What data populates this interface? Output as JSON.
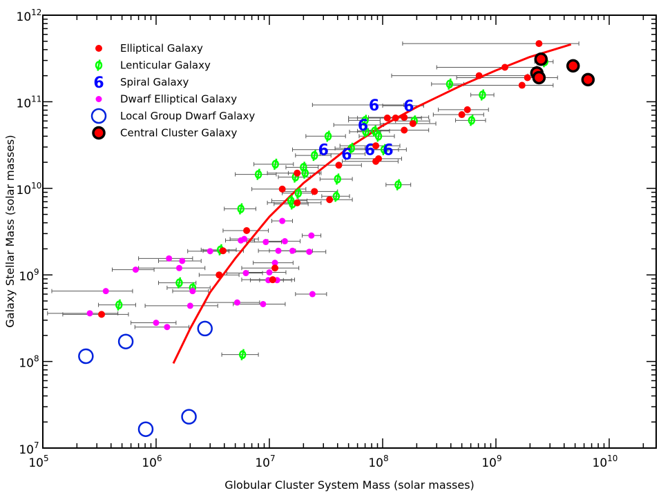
{
  "chart_data": {
    "type": "scatter",
    "xlabel": "Globular Cluster System Mass (solar masses)",
    "ylabel": "Galaxy Stellar Mass (solar masses)",
    "xscale": "log",
    "yscale": "log",
    "xlim": [
      100000,
      30000000000
    ],
    "ylim": [
      10000000,
      1000000000000
    ],
    "x_ticks": [
      {
        "base": "10",
        "exp": "5"
      },
      {
        "base": "10",
        "exp": "6"
      },
      {
        "base": "10",
        "exp": "7"
      },
      {
        "base": "10",
        "exp": "8"
      },
      {
        "base": "10",
        "exp": "9"
      },
      {
        "base": "10",
        "exp": "10"
      }
    ],
    "y_ticks": [
      {
        "base": "10",
        "exp": "7"
      },
      {
        "base": "10",
        "exp": "8"
      },
      {
        "base": "10",
        "exp": "9"
      },
      {
        "base": "10",
        "exp": "10"
      },
      {
        "base": "10",
        "exp": "11"
      },
      {
        "base": "10",
        "exp": "12"
      }
    ],
    "legend_position": "top-left",
    "colors": {
      "elliptical": "#ff0000",
      "lenticular": "#00ff00",
      "spiral": "#0000ff",
      "dwarf": "#ff00ff",
      "local": "#0022dd",
      "central_outline": "#000000",
      "fit": "#ff0000",
      "errorbar": "#555555"
    },
    "series": [
      {
        "name": "Elliptical Galaxy",
        "marker": "dot",
        "points": [
          [
            2400000000.0,
            470000000000.0
          ],
          [
            710000000.0,
            200000000000.0
          ],
          [
            1200000000.0,
            250000000000.0
          ],
          [
            1900000000.0,
            190000000000.0
          ],
          [
            1700000000.0,
            155000000000.0
          ],
          [
            110000000.0,
            65000000000.0
          ],
          [
            130000000.0,
            65000000000.0
          ],
          [
            155000000.0,
            66000000000.0
          ],
          [
            185000000.0,
            56000000000.0
          ],
          [
            560000000.0,
            81000000000.0
          ],
          [
            500000000.0,
            71000000000.0
          ],
          [
            155000000.0,
            47000000000.0
          ],
          [
            87000000.0,
            31000000000.0
          ],
          [
            92000000.0,
            22000000000.0
          ],
          [
            87000000.0,
            20500000000.0
          ],
          [
            41000000.0,
            18500000000.0
          ],
          [
            34000000.0,
            7400000000.0
          ],
          [
            25000000.0,
            9200000000.0
          ],
          [
            17600000.0,
            6800000000.0
          ],
          [
            17600000.0,
            15000000000.0
          ],
          [
            13000000.0,
            9800000000.0
          ],
          [
            6300000.0,
            3250000000.0
          ],
          [
            3900000.0,
            1900000000.0
          ],
          [
            3600000.0,
            1000000000.0
          ],
          [
            11200000.0,
            1200000000.0
          ],
          [
            10700000.0,
            880000000.0
          ],
          [
            330000.0,
            350000000.0
          ]
        ],
        "xerr_lo": [
          2250000000.0,
          590000000.0,
          900000000.0,
          1450000000.0,
          1300000000.0,
          60000000.0,
          70000000.0,
          80000000.0,
          90000000.0,
          250000000.0,
          220000000.0,
          80000000.0,
          45000000.0,
          45000000.0,
          43000000.0,
          20000000.0,
          16000000.0,
          12000000.0,
          8000000.0,
          8000000.0,
          6000000.0,
          2400000.0,
          1300000.0,
          1200000.0,
          5500000.0,
          5000000.0,
          180000.0
        ],
        "xerr_hi": [
          3000000000.0,
          1200000000.0,
          1100000000.0,
          1600000000.0,
          1500000000.0,
          80000000.0,
          90000000.0,
          100000000.0,
          110000000.0,
          300000000.0,
          280000000.0,
          100000000.0,
          55000000.0,
          55000000.0,
          50000000.0,
          24000000.0,
          20000000.0,
          15000000.0,
          11000000.0,
          11000000.0,
          8000000.0,
          3500000.0,
          2000000.0,
          1800000.0,
          7000000.0,
          6000000.0,
          240000.0
        ]
      },
      {
        "name": "Lenticular Galaxy",
        "marker": "phi",
        "points": [
          [
            2700000000.0,
            290000000000.0
          ],
          [
            390000000.0,
            160000000000.0
          ],
          [
            760000000.0,
            120000000000.0
          ],
          [
            610000000.0,
            61000000000.0
          ],
          [
            190000000.0,
            60000000000.0
          ],
          [
            70000000.0,
            61000000000.0
          ],
          [
            71000000.0,
            45000000000.0
          ],
          [
            85000000.0,
            46000000000.0
          ],
          [
            92000000.0,
            40000000000.0
          ],
          [
            53000000.0,
            29000000000.0
          ],
          [
            103000000.0,
            28000000000.0
          ],
          [
            33000000.0,
            40000000000.0
          ],
          [
            25000000.0,
            24000000000.0
          ],
          [
            11300000.0,
            19000000000.0
          ],
          [
            20000000.0,
            17500000000.0
          ],
          [
            20700000.0,
            15000000000.0
          ],
          [
            17000000.0,
            13500000000.0
          ],
          [
            8000000.0,
            14500000000.0
          ],
          [
            40000000.0,
            12800000000.0
          ],
          [
            137000000.0,
            11000000000.0
          ],
          [
            15500000.0,
            7200000000.0
          ],
          [
            16000000.0,
            6600000000.0
          ],
          [
            18000000.0,
            8800000000.0
          ],
          [
            39000000.0,
            8100000000.0
          ],
          [
            5600000.0,
            5800000000.0
          ],
          [
            3700000.0,
            1950000000.0
          ],
          [
            1600000.0,
            810000000.0
          ],
          [
            2100000.0,
            710000000.0
          ],
          [
            470000.0,
            450000000.0
          ],
          [
            5800000.0,
            120000000.0
          ]
        ],
        "xerr_lo": [
          500000000.0,
          120000000.0,
          160000000.0,
          170000000.0,
          60000000.0,
          20000000.0,
          20000000.0,
          25000000.0,
          30000000.0,
          15000000.0,
          30000000.0,
          12000000.0,
          8000000.0,
          4000000.0,
          6000000.0,
          6000000.0,
          5000000.0,
          3000000.0,
          12000000.0,
          30000000.0,
          5000000.0,
          5000000.0,
          5000000.0,
          10000000.0,
          1600000.0,
          1200000.0,
          550000.0,
          850000.0,
          160000.0,
          2000000.0
        ],
        "xerr_hi": [
          500000000.0,
          130000000.0,
          200000000.0,
          200000000.0,
          70000000.0,
          25000000.0,
          25000000.0,
          30000000.0,
          35000000.0,
          17000000.0,
          35000000.0,
          14000000.0,
          10000000.0,
          5000000.0,
          7000000.0,
          7000000.0,
          6000000.0,
          3500000.0,
          14000000.0,
          40000000.0,
          6000000.0,
          6000000.0,
          6000000.0,
          12000000.0,
          2000000.0,
          1400000.0,
          650000.0,
          900000.0,
          190000.0,
          2200000.0
        ]
      },
      {
        "name": "Spiral Galaxy",
        "marker": "six",
        "points": [
          [
            84000000.0,
            92000000000.0
          ],
          [
            170000000.0,
            90000000000.0
          ],
          [
            67000000.0,
            54000000000.0
          ],
          [
            30000000.0,
            28000000000.0
          ],
          [
            48000000.0,
            25000000000.0
          ],
          [
            77000000.0,
            28000000000.0
          ],
          [
            112000000.0,
            28000000000.0
          ]
        ],
        "xerr_lo": [
          60000000.0,
          70000000.0,
          30000000.0,
          14000000.0,
          20000000.0,
          30000000.0,
          40000000.0
        ],
        "xerr_hi": [
          70000000.0,
          60000000.0,
          35000000.0,
          16000000.0,
          22000000.0,
          35000000.0,
          50000000.0
        ]
      },
      {
        "name": "Dwarf Elliptical Galaxy",
        "marker": "dot",
        "points": [
          [
            13000000.0,
            4200000000.0
          ],
          [
            23500000.0,
            2850000000.0
          ],
          [
            6000000.0,
            2600000000.0
          ],
          [
            5600000.0,
            2500000000.0
          ],
          [
            9300000.0,
            2400000000.0
          ],
          [
            13700000.0,
            2450000000.0
          ],
          [
            16000000.0,
            1900000000.0
          ],
          [
            12000000.0,
            1900000000.0
          ],
          [
            22500000.0,
            1850000000.0
          ],
          [
            3000000.0,
            1880000000.0
          ],
          [
            11200000.0,
            1380000000.0
          ],
          [
            1300000.0,
            1550000000.0
          ],
          [
            1700000.0,
            1450000000.0
          ],
          [
            1600000.0,
            1200000000.0
          ],
          [
            660000.0,
            1150000000.0
          ],
          [
            6200000.0,
            1050000000.0
          ],
          [
            10000000.0,
            1070000000.0
          ],
          [
            9800000.0,
            870000000.0
          ],
          [
            11700000.0,
            870000000.0
          ],
          [
            2100000.0,
            650000000.0
          ],
          [
            360000.0,
            650000000.0
          ],
          [
            24000000.0,
            600000000.0
          ],
          [
            2000000.0,
            440000000.0
          ],
          [
            5200000.0,
            480000000.0
          ],
          [
            8800000.0,
            460000000.0
          ],
          [
            260000.0,
            360000000.0
          ],
          [
            1000000.0,
            280000000.0
          ],
          [
            1250000.0,
            250000000.0
          ]
        ],
        "xerr_lo": [
          2500000.0,
          4000000.0,
          1500000.0,
          1500000.0,
          3000000.0,
          4000000.0,
          6000000.0,
          4000000.0,
          7000000.0,
          1100000.0,
          4000000.0,
          600000.0,
          650000.0,
          900000.0,
          250000.0,
          2000000.0,
          3500000.0,
          3000000.0,
          3500000.0,
          700000.0,
          240000.0,
          7000000.0,
          1200000.0,
          2500000.0,
          4000000.0,
          150000.0,
          400000.0,
          600000.0
        ],
        "xerr_hi": [
          3000000.0,
          5000000.0,
          2000000.0,
          1800000.0,
          3500000.0,
          5000000.0,
          8000000.0,
          5000000.0,
          9000000.0,
          1400000.0,
          5000000.0,
          800000.0,
          800000.0,
          1100000.0,
          300000.0,
          2500000.0,
          4000000.0,
          3500000.0,
          4000000.0,
          800000.0,
          260000.0,
          8000000.0,
          1500000.0,
          3000000.0,
          5000000.0,
          200000.0,
          500000.0,
          700000.0
        ]
      },
      {
        "name": "Local Group Dwarf Galaxy",
        "marker": "ring",
        "points": [
          [
            240000.0,
            115000000.0
          ],
          [
            540000.0,
            170000000.0
          ],
          [
            2700000.0,
            240000000.0
          ],
          [
            810000.0,
            16500000.0
          ],
          [
            1950000.0,
            23000000.0
          ]
        ],
        "xerr_lo": [
          0,
          0,
          0,
          0,
          0
        ],
        "xerr_hi": [
          0,
          0,
          0,
          0,
          0
        ]
      },
      {
        "name": "Central Cluster Galaxy",
        "marker": "ringdot",
        "points": [
          [
            2500000000.0,
            310000000000.0
          ],
          [
            2300000000.0,
            215000000000.0
          ],
          [
            2400000000.0,
            190000000000.0
          ],
          [
            4800000000.0,
            260000000000.0
          ],
          [
            6500000000.0,
            180000000000.0
          ]
        ],
        "xerr_lo": [
          0,
          0,
          0,
          0,
          0
        ],
        "xerr_hi": [
          0,
          0,
          0,
          0,
          0
        ]
      }
    ],
    "fit_line": {
      "x": [
        1420000.0,
        2000000.0,
        3000000.0,
        5000000.0,
        10000000.0,
        20000000.0,
        50000000.0,
        100000000.0,
        200000000.0,
        500000000.0,
        1000000000.0,
        2000000000.0,
        4600000000.0
      ],
      "y": [
        95000000.0,
        240000000.0,
        630000000.0,
        1550000000.0,
        4700000000.0,
        11500000000.0,
        29500000000.0,
        53000000000.0,
        87000000000.0,
        155000000000.0,
        230000000000.0,
        330000000000.0,
        460000000000.0
      ]
    }
  }
}
